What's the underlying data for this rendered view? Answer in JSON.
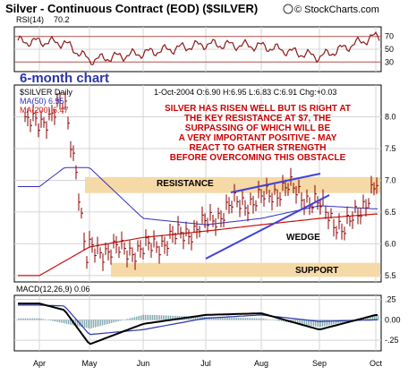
{
  "header": {
    "title": "Silver - Continuous Contract (EOD) ($SILVER)",
    "copyright": "© StockCharts.com"
  },
  "rsi": {
    "label": "RSI(14)",
    "value": "70.2",
    "levels": [
      "70",
      "50",
      "30"
    ]
  },
  "annotation": {
    "period": "6-month chart",
    "commentary": [
      "SILVER HAS RISEN WELL BUT IS RIGHT AT",
      "THE KEY RESISTANCE AT $7, THE",
      "SURPASSING OF WHICH WILL BE",
      "A VERY IMPORTANT POSITIVE - MAY",
      "REACT TO GATHER STRENGTH",
      "BEFORE OVERCOMING THIS OBSTACLE"
    ],
    "resistance": "RESISTANCE",
    "support": "SUPPORT",
    "wedge": "WEDGE"
  },
  "price_info": {
    "symbol": "$SILVER Daily",
    "ma50": "MA(50) 6.55",
    "ma200": "MA(200) 6.47",
    "ohlc": "1-Oct-2004 O:6.90 H:6.95 L:6.83 C:6.91 Chg:+0.03"
  },
  "macd": {
    "label": "MACD(12,26,9) 0.06",
    "ticks": [
      ".25",
      "0.00",
      "-.25"
    ]
  },
  "colors": {
    "background": "#ffffff",
    "grid": "#d4d4d4",
    "frame": "#000000",
    "rsi_line": "#8b1a1a",
    "rsi_band": "#b05050",
    "price_bar": "#8b0000",
    "ma50": "#3030c0",
    "ma200": "#cc1111",
    "zone": "#f5d9a6",
    "annotation_text": "#cc0000",
    "wedge_line": "#4040e0",
    "macd_line": "#000000",
    "signal_line": "#2a36a8",
    "histogram": "#7fa8b0",
    "period_text": "#2a36a8"
  },
  "chart_data": {
    "type": "ohlc",
    "title": "Silver - Continuous Contract (EOD) ($SILVER)",
    "x_labels": [
      "Apr",
      "May",
      "Jun",
      "Jul",
      "Aug",
      "Sep",
      "Oct"
    ],
    "price_ticks": [
      "8.0",
      "7.5",
      "7.0",
      "6.5",
      "6.0",
      "5.5"
    ],
    "price_ylim": [
      5.4,
      8.5
    ],
    "resistance_zone": [
      6.8,
      7.05
    ],
    "support_zone": [
      5.48,
      5.7
    ],
    "price_keypoints": [
      [
        "Apr",
        7.9
      ],
      [
        "Apr-mid",
        8.2
      ],
      [
        "Apr-late",
        7.1
      ],
      [
        "May-early",
        5.7
      ],
      [
        "May",
        5.9
      ],
      [
        "Jun",
        5.9
      ],
      [
        "Jul",
        6.3
      ],
      [
        "Jul-mid",
        6.6
      ],
      [
        "Aug",
        6.7
      ],
      [
        "Aug-mid",
        6.9
      ],
      [
        "Sep",
        6.6
      ],
      [
        "Sep-mid",
        6.2
      ],
      [
        "Oct",
        6.91
      ]
    ],
    "ma50_keypoints": [
      [
        "Apr",
        6.9
      ],
      [
        "Apr-mid",
        7.2
      ],
      [
        "May",
        7.2
      ],
      [
        "Jun",
        6.4
      ],
      [
        "Jul",
        6.3
      ],
      [
        "Aug",
        6.4
      ],
      [
        "Sep",
        6.6
      ],
      [
        "Oct",
        6.55
      ]
    ],
    "ma200_keypoints": [
      [
        "Apr",
        5.5
      ],
      [
        "May",
        5.95
      ],
      [
        "Jun",
        6.1
      ],
      [
        "Jul",
        6.2
      ],
      [
        "Aug",
        6.3
      ],
      [
        "Sep",
        6.4
      ],
      [
        "Oct",
        6.47
      ]
    ],
    "rsi_ylim": [
      15,
      85
    ],
    "rsi_keypoints": [
      [
        "Apr",
        62
      ],
      [
        "Apr-mid",
        60
      ],
      [
        "May",
        33
      ],
      [
        "Jun",
        44
      ],
      [
        "Jul",
        58
      ],
      [
        "Aug",
        55
      ],
      [
        "Sep",
        38
      ],
      [
        "Oct",
        70.2
      ]
    ],
    "macd_ylim": [
      -0.38,
      0.3
    ],
    "macd_keypoints": [
      [
        "Apr",
        0.2
      ],
      [
        "Apr-mid",
        0.12
      ],
      [
        "May",
        -0.3
      ],
      [
        "Jun",
        -0.05
      ],
      [
        "Jul",
        0.06
      ],
      [
        "Aug",
        0.08
      ],
      [
        "Sep",
        -0.12
      ],
      [
        "Oct",
        0.06
      ]
    ],
    "signal_keypoints": [
      [
        "Apr",
        0.18
      ],
      [
        "Apr-mid",
        0.17
      ],
      [
        "May",
        -0.18
      ],
      [
        "Jun",
        -0.12
      ],
      [
        "Jul",
        0.02
      ],
      [
        "Aug",
        0.06
      ],
      [
        "Sep",
        -0.02
      ],
      [
        "Oct",
        0.0
      ]
    ]
  }
}
